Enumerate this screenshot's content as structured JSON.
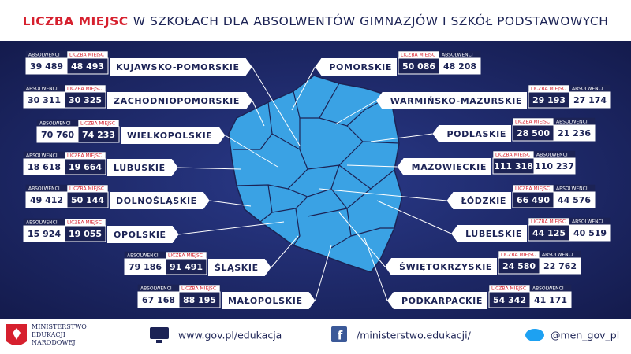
{
  "title": {
    "highlight": "LICZBA MIEJSC",
    "rest": "W SZKOŁACH DLA ABSOLWENTÓW GIMNAZJÓW I SZKÓŁ PODSTAWOWYCH"
  },
  "labels": {
    "graduates": "ABSOLWENCI",
    "places": "LICZBA MIEJSC"
  },
  "regions_left": [
    {
      "name": "KUJAWSKO-POMORSKIE",
      "graduates": "39 489",
      "places": "48 493"
    },
    {
      "name": "ZACHODNIOPOMORSKIE",
      "graduates": "30 311",
      "places": "30 325"
    },
    {
      "name": "WIELKOPOLSKIE",
      "graduates": "70 760",
      "places": "74 233"
    },
    {
      "name": "LUBUSKIE",
      "graduates": "18 618",
      "places": "19 664"
    },
    {
      "name": "DOLNOŚLĄSKIE",
      "graduates": "49 412",
      "places": "50 144"
    },
    {
      "name": "OPOLSKIE",
      "graduates": "15 924",
      "places": "19 055"
    },
    {
      "name": "ŚLĄSKIE",
      "graduates": "79 186",
      "places": "91 491"
    },
    {
      "name": "MAŁOPOLSKIE",
      "graduates": "67 168",
      "places": "88 195"
    }
  ],
  "regions_right": [
    {
      "name": "POMORSKIE",
      "places": "50 086",
      "graduates": "48 208"
    },
    {
      "name": "WARMIŃSKO-MAZURSKIE",
      "places": "29 193",
      "graduates": "27 174"
    },
    {
      "name": "PODLASKIE",
      "places": "28 500",
      "graduates": "21 236"
    },
    {
      "name": "MAZOWIECKIE",
      "places": "111 318",
      "graduates": "110 237"
    },
    {
      "name": "ŁÓDZKIE",
      "places": "66 490",
      "graduates": "44 576"
    },
    {
      "name": "LUBELSKIE",
      "places": "44 125",
      "graduates": "40 519"
    },
    {
      "name": "ŚWIĘTOKRZYSKIE",
      "places": "24 580",
      "graduates": "22 762"
    },
    {
      "name": "PODKARPACKIE",
      "places": "54 342",
      "graduates": "41 171"
    }
  ],
  "footer": {
    "ministry": [
      "MINISTERSTWO",
      "EDUKACJI",
      "NARODOWEJ"
    ],
    "links": [
      "www.gov.pl/edukacja",
      "/ministerstwo.edukacji/",
      "@men_gov_pl"
    ]
  }
}
